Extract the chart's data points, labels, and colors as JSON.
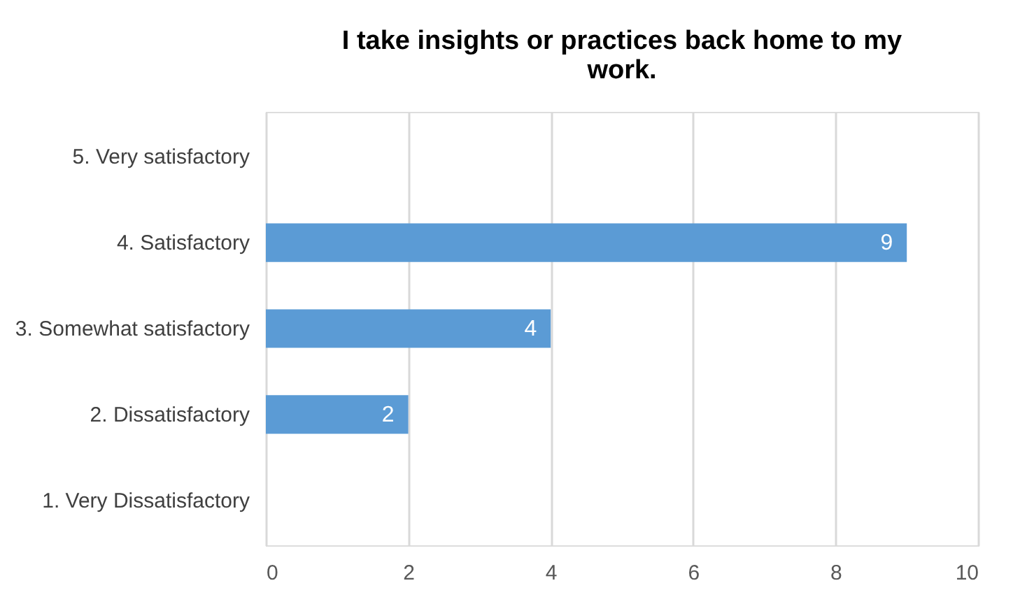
{
  "chart_data": {
    "type": "bar",
    "orientation": "horizontal",
    "title": "I take insights or practices back home to my work.",
    "categories": [
      "5. Very satisfactory",
      "4. Satisfactory",
      "3. Somewhat satisfactory",
      "2. Dissatisfactory",
      "1. Very Dissatisfactory"
    ],
    "values": [
      0,
      9,
      4,
      2,
      0
    ],
    "value_labels": [
      null,
      "9",
      "4",
      "2",
      null
    ],
    "color": "#5b9bd5",
    "xlim": [
      0,
      10
    ],
    "xticks": [
      0,
      2,
      4,
      6,
      8,
      10
    ],
    "grid": "x"
  }
}
